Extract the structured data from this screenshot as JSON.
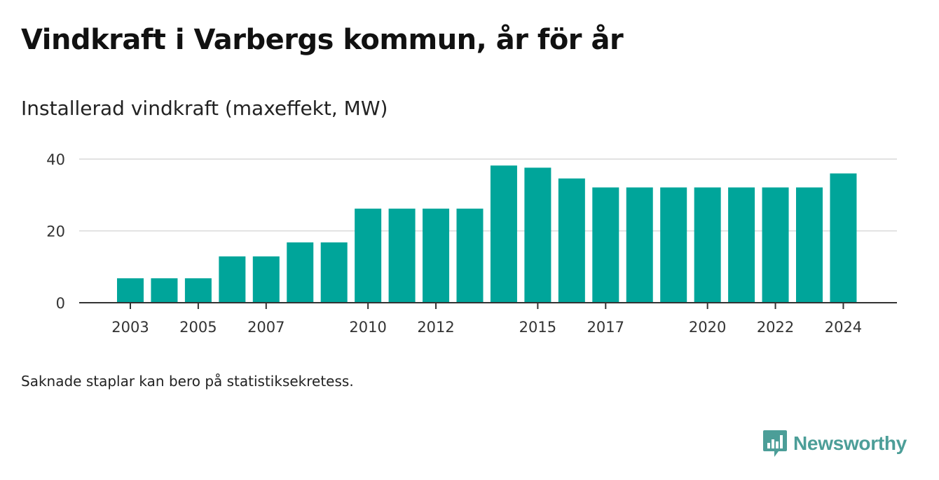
{
  "title": "Vindkraft i Varbergs kommun, år för år",
  "subtitle": "Installerad vindkraft (maxeffekt, MW)",
  "note": "Saknade staplar kan bero på statistiksekretess.",
  "brand": {
    "name": "Newsworthy",
    "icon": "newsworthy-logo-icon",
    "color": "#4c9e98"
  },
  "chart_data": {
    "type": "bar",
    "title": "Installerad vindkraft (maxeffekt, MW)",
    "xlabel": "",
    "ylabel": "",
    "ylim": [
      0,
      40
    ],
    "yticks": [
      0,
      20,
      40
    ],
    "grid": true,
    "bar_color": "#00a59a",
    "categories": [
      "2003",
      "2004",
      "2005",
      "2006",
      "2007",
      "2008",
      "2009",
      "2010",
      "2011",
      "2012",
      "2013",
      "2014",
      "2015",
      "2016",
      "2017",
      "2018",
      "2019",
      "2020",
      "2021",
      "2022",
      "2023",
      "2024"
    ],
    "xtick_labels": [
      "2003",
      "2005",
      "2007",
      "2010",
      "2012",
      "2015",
      "2017",
      "2020",
      "2022",
      "2024"
    ],
    "values": [
      6.8,
      6.8,
      6.8,
      12.9,
      12.9,
      16.8,
      16.8,
      26.2,
      26.2,
      26.2,
      26.2,
      38.2,
      37.6,
      34.6,
      32.1,
      32.1,
      32.1,
      32.1,
      32.1,
      32.1,
      32.1,
      36.0
    ]
  }
}
